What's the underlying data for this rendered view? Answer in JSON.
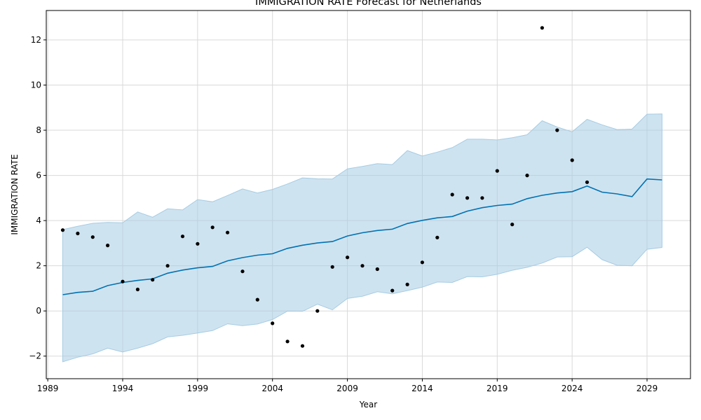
{
  "chart_data": {
    "type": "line",
    "title": "IMMIGRATION RATE Forecast for Netherlands",
    "xlabel": "Year",
    "ylabel": "IMMIGRATION RATE",
    "xlim": [
      1988.9,
      2031.9
    ],
    "ylim": [
      -3.0,
      13.3
    ],
    "xticks": [
      1989,
      1994,
      1999,
      2004,
      2009,
      2014,
      2019,
      2024,
      2029
    ],
    "yticks": [
      -2,
      0,
      2,
      4,
      6,
      8,
      10,
      12
    ],
    "grid": true,
    "colors": {
      "forecast": "#0072B2",
      "interval": "#A6CCE3",
      "observed": "#000000"
    },
    "observed": {
      "x": [
        1990,
        1991,
        1992,
        1993,
        1994,
        1995,
        1996,
        1997,
        1998,
        1999,
        2000,
        2001,
        2002,
        2003,
        2004,
        2005,
        2006,
        2007,
        2008,
        2009,
        2010,
        2011,
        2012,
        2013,
        2014,
        2015,
        2016,
        2017,
        2018,
        2019,
        2020,
        2021,
        2022,
        2023,
        2024,
        2025
      ],
      "y": [
        3.58,
        3.43,
        3.27,
        2.9,
        1.3,
        0.95,
        1.38,
        2.0,
        3.3,
        2.97,
        3.7,
        3.47,
        1.75,
        0.5,
        -0.55,
        -1.35,
        -1.55,
        0.0,
        1.95,
        2.37,
        2.0,
        1.85,
        0.9,
        1.17,
        2.15,
        3.25,
        5.15,
        5.0,
        5.0,
        6.2,
        3.83,
        6.0,
        12.53,
        8.0,
        6.67,
        5.7
      ]
    },
    "forecast": {
      "x": [
        1990,
        1991,
        1992,
        1993,
        1994,
        1995,
        1996,
        1997,
        1998,
        1999,
        2000,
        2001,
        2002,
        2003,
        2004,
        2005,
        2006,
        2007,
        2008,
        2009,
        2010,
        2011,
        2012,
        2013,
        2014,
        2015,
        2016,
        2017,
        2018,
        2019,
        2020,
        2021,
        2022,
        2023,
        2024,
        2025,
        2026,
        2027,
        2028,
        2029,
        2030
      ],
      "yhat": [
        0.72,
        0.82,
        0.87,
        1.12,
        1.26,
        1.35,
        1.42,
        1.67,
        1.81,
        1.91,
        1.97,
        2.22,
        2.36,
        2.47,
        2.53,
        2.77,
        2.91,
        3.01,
        3.07,
        3.32,
        3.46,
        3.56,
        3.62,
        3.87,
        4.01,
        4.12,
        4.18,
        4.42,
        4.57,
        4.67,
        4.73,
        4.97,
        5.12,
        5.22,
        5.28,
        5.53,
        5.26,
        5.18,
        5.06,
        5.84,
        5.8
      ],
      "upper": [
        3.6,
        3.75,
        3.88,
        3.92,
        3.9,
        4.38,
        4.15,
        4.52,
        4.47,
        4.93,
        4.83,
        5.11,
        5.4,
        5.22,
        5.38,
        5.62,
        5.89,
        5.85,
        5.84,
        6.29,
        6.4,
        6.52,
        6.48,
        7.1,
        6.86,
        7.03,
        7.23,
        7.6,
        7.6,
        7.57,
        7.67,
        7.8,
        8.42,
        8.14,
        7.93,
        8.48,
        8.24,
        8.03,
        8.05,
        8.71,
        8.72
      ],
      "lower": [
        -2.25,
        -2.05,
        -1.9,
        -1.65,
        -1.82,
        -1.65,
        -1.45,
        -1.15,
        -1.08,
        -0.98,
        -0.87,
        -0.57,
        -0.65,
        -0.58,
        -0.38,
        -0.01,
        -0.02,
        0.3,
        0.05,
        0.55,
        0.65,
        0.85,
        0.76,
        0.9,
        1.05,
        1.28,
        1.26,
        1.52,
        1.51,
        1.62,
        1.8,
        1.93,
        2.12,
        2.39,
        2.4,
        2.82,
        2.27,
        2.02,
        2.0,
        2.73,
        2.81
      ]
    }
  }
}
